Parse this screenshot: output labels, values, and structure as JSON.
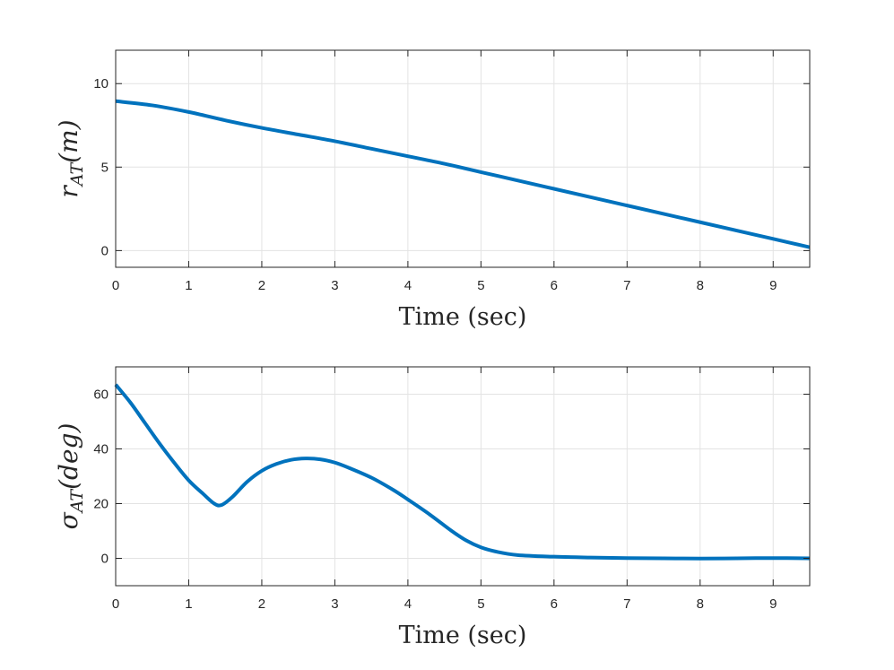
{
  "chart_data": [
    {
      "type": "line",
      "xlabel": "Time (sec)",
      "ylabel": {
        "main": "r",
        "sub": "AT",
        "unit": "(m)"
      },
      "xlim": [
        0,
        9.5
      ],
      "ylim": [
        -1,
        12
      ],
      "xticks": [
        0,
        1,
        2,
        3,
        4,
        5,
        6,
        7,
        8,
        9
      ],
      "yticks": [
        0,
        5,
        10
      ],
      "grid": true,
      "color": "#0072BD",
      "series": [
        {
          "x": [
            0,
            0.5,
            1,
            1.5,
            2,
            2.5,
            3,
            3.5,
            4,
            4.5,
            5,
            5.5,
            6,
            6.5,
            7,
            7.5,
            8,
            8.5,
            9,
            9.5
          ],
          "y": [
            8.95,
            8.7,
            8.3,
            7.8,
            7.35,
            6.95,
            6.55,
            6.1,
            5.65,
            5.2,
            4.7,
            4.2,
            3.7,
            3.2,
            2.7,
            2.2,
            1.7,
            1.2,
            0.7,
            0.2
          ]
        }
      ]
    },
    {
      "type": "line",
      "xlabel": "Time (sec)",
      "ylabel": {
        "main": "σ",
        "sub": "AT",
        "unit": "(deg)"
      },
      "xlim": [
        0,
        9.5
      ],
      "ylim": [
        -10,
        70
      ],
      "xticks": [
        0,
        1,
        2,
        3,
        4,
        5,
        6,
        7,
        8,
        9
      ],
      "yticks": [
        0,
        20,
        40,
        60
      ],
      "grid": true,
      "color": "#0072BD",
      "series": [
        {
          "x": [
            0,
            0.2,
            0.4,
            0.6,
            0.8,
            1.0,
            1.2,
            1.35,
            1.45,
            1.6,
            1.8,
            2.0,
            2.2,
            2.4,
            2.6,
            2.8,
            3.0,
            3.2,
            3.5,
            3.8,
            4.0,
            4.3,
            4.6,
            4.8,
            5.0,
            5.2,
            5.5,
            6.0,
            6.5,
            7.0,
            7.5,
            8.0,
            8.5,
            9.0,
            9.5
          ],
          "y": [
            63.5,
            57,
            49.5,
            42,
            35,
            28.5,
            23.5,
            20,
            19.5,
            22.5,
            28,
            32,
            34.5,
            36,
            36.5,
            36.2,
            35,
            33,
            29.5,
            25,
            21.5,
            16,
            10,
            6.5,
            4,
            2.5,
            1.2,
            0.6,
            0.3,
            0.1,
            0,
            -0.1,
            0,
            0.1,
            0
          ]
        }
      ]
    }
  ]
}
